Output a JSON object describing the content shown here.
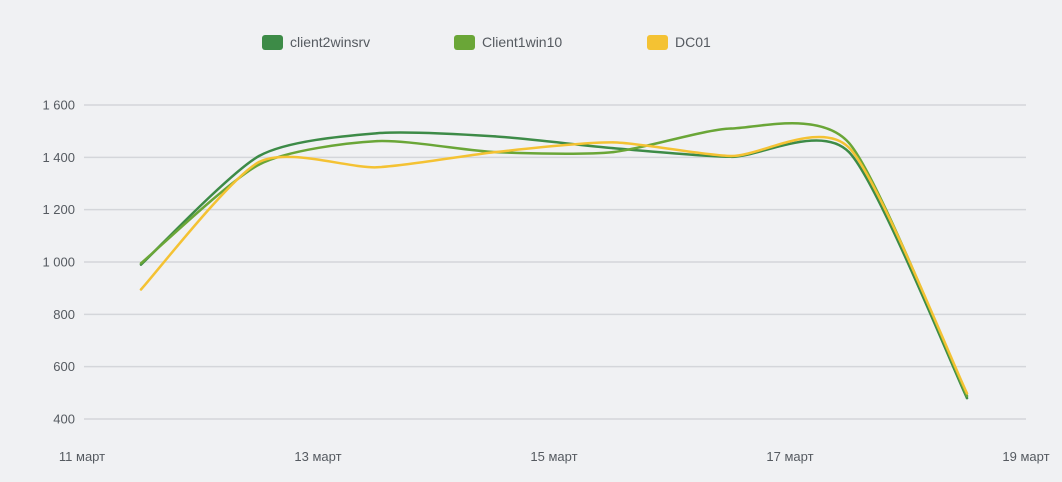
{
  "chart_data": {
    "type": "line",
    "title": "",
    "xlabel": "",
    "ylabel": "",
    "x_start_label": "11 марта",
    "x_tick_labels": [
      "11 март",
      "13 март",
      "15 март",
      "17 март",
      "19 март"
    ],
    "x": [
      "11.5 марта",
      "12.5 марта",
      "13.5 марта",
      "14.5 марта",
      "15.5 марта",
      "16.5 марта",
      "17.5 марта",
      "18.5 марта"
    ],
    "ylim": [
      400,
      1600
    ],
    "y_ticks": [
      400,
      600,
      800,
      1000,
      1200,
      1400,
      1600
    ],
    "y_tick_labels": [
      "400",
      "600",
      "800",
      "1 000",
      "1 200",
      "1 400",
      "1 600"
    ],
    "grid": true,
    "legend_position": "top",
    "series": [
      {
        "name": "client2winsrv",
        "color": "#3d8b47",
        "values": [
          990,
          1405,
          1492,
          1480,
          1435,
          1402,
          1420,
          480
        ]
      },
      {
        "name": "Client1win10",
        "color": "#6aa637",
        "values": [
          995,
          1372,
          1462,
          1420,
          1420,
          1510,
          1455,
          488
        ]
      },
      {
        "name": "DC01",
        "color": "#f4c233",
        "values": [
          895,
          1382,
          1362,
          1420,
          1457,
          1405,
          1437,
          498
        ]
      }
    ]
  }
}
